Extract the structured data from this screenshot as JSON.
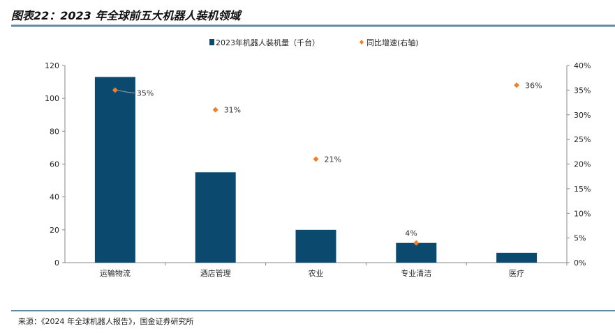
{
  "title": "图表22：2023 年全球前五大机器人装机领域",
  "source": "来源：《2024 年全球机器人报告》，国金证券研究所",
  "colors": {
    "bar": "#0b4a6e",
    "point": "#f07f26",
    "rule": "#5e8aa0"
  },
  "chart_data": {
    "type": "bar",
    "categories": [
      "运输物流",
      "酒店管理",
      "农业",
      "专业清洁",
      "医疗"
    ],
    "series": [
      {
        "name": "2023年机器人装机量（千台）",
        "type": "bar",
        "axis": "left",
        "values": [
          113,
          55,
          20,
          12,
          6
        ]
      },
      {
        "name": "同比增速(右轴)",
        "type": "scatter",
        "axis": "right",
        "values": [
          35,
          31,
          21,
          4,
          36
        ],
        "labels": [
          "35%",
          "31%",
          "21%",
          "4%",
          "36%"
        ]
      }
    ],
    "y_left": {
      "range": [
        0,
        120
      ],
      "ticks": [
        "0",
        "20",
        "40",
        "60",
        "80",
        "100",
        "120"
      ]
    },
    "y_right": {
      "range": [
        0,
        40
      ],
      "ticks": [
        "0%",
        "5%",
        "10%",
        "15%",
        "20%",
        "25%",
        "30%",
        "35%",
        "40%"
      ]
    },
    "legend": "top-center",
    "grid": false
  }
}
